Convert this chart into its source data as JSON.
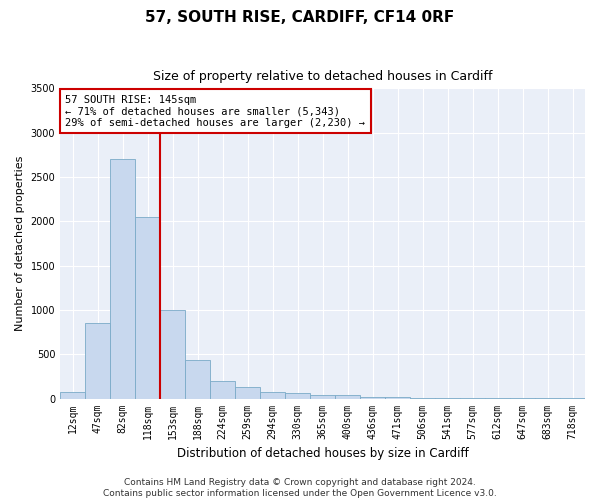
{
  "title": "57, SOUTH RISE, CARDIFF, CF14 0RF",
  "subtitle": "Size of property relative to detached houses in Cardiff",
  "xlabel": "Distribution of detached houses by size in Cardiff",
  "ylabel": "Number of detached properties",
  "categories": [
    "12sqm",
    "47sqm",
    "82sqm",
    "118sqm",
    "153sqm",
    "188sqm",
    "224sqm",
    "259sqm",
    "294sqm",
    "330sqm",
    "365sqm",
    "400sqm",
    "436sqm",
    "471sqm",
    "506sqm",
    "541sqm",
    "577sqm",
    "612sqm",
    "647sqm",
    "683sqm",
    "718sqm"
  ],
  "values": [
    75,
    850,
    2700,
    2050,
    1000,
    440,
    200,
    130,
    75,
    60,
    40,
    35,
    20,
    15,
    10,
    5,
    3,
    2,
    2,
    1,
    1
  ],
  "bar_color": "#c8d8ee",
  "bar_edge_color": "#7aaac8",
  "vline_x": 3.5,
  "vline_color": "#cc0000",
  "ylim": [
    0,
    3500
  ],
  "yticks": [
    0,
    500,
    1000,
    1500,
    2000,
    2500,
    3000,
    3500
  ],
  "annotation_text": "57 SOUTH RISE: 145sqm\n← 71% of detached houses are smaller (5,343)\n29% of semi-detached houses are larger (2,230) →",
  "annotation_box_facecolor": "#ffffff",
  "annotation_box_edgecolor": "#cc0000",
  "footer_line1": "Contains HM Land Registry data © Crown copyright and database right 2024.",
  "footer_line2": "Contains public sector information licensed under the Open Government Licence v3.0.",
  "bg_color": "#ffffff",
  "plot_bg_color": "#eaeff8",
  "grid_color": "#ffffff",
  "title_fontsize": 11,
  "subtitle_fontsize": 9,
  "tick_fontsize": 7,
  "ylabel_fontsize": 8,
  "xlabel_fontsize": 8.5,
  "annotation_fontsize": 7.5,
  "footer_fontsize": 6.5
}
